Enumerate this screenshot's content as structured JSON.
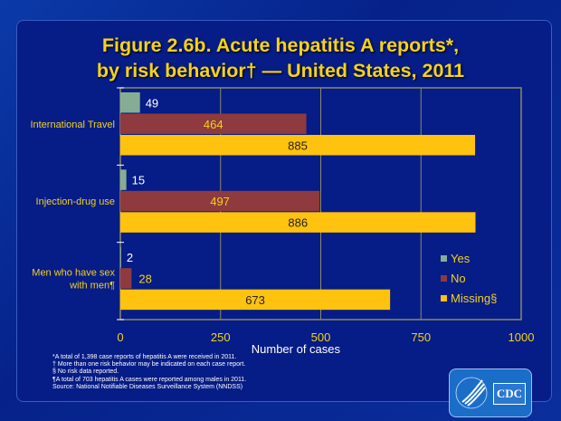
{
  "chart_data": {
    "type": "bar",
    "orientation": "horizontal",
    "title": "Figure 2.6b.  Acute hepatitis A reports*,",
    "title_line2": "by risk behavior† — United States, 2011",
    "categories": [
      "International Travel",
      "Injection-drug use",
      "Men who have sex with men¶"
    ],
    "series": [
      {
        "name": "Yes",
        "values": [
          49,
          15,
          2
        ],
        "color": "#86ad94"
      },
      {
        "name": "No",
        "values": [
          464,
          497,
          28
        ],
        "color": "#8e3a3e"
      },
      {
        "name": "Missing§",
        "values": [
          885,
          886,
          673
        ],
        "color": "#ffc20e"
      }
    ],
    "xlabel": "Number  of cases",
    "xlim": [
      0,
      1000
    ],
    "xticks": [
      "0",
      "250",
      "500",
      "750",
      "1000"
    ],
    "grid": "vertical",
    "legend": "right"
  },
  "footnotes": [
    "*A total of 1,398 case reports of hepatitis A were received in 2011.",
    "† More than one risk behavior may be indicated on each case report.",
    "§ No risk data reported.",
    "¶A total of 703 hepatitis A cases were reported among males in 2011.",
    "Source: National Notifiable Diseases Surveillance System (NNDSS)"
  ],
  "logo": {
    "text": "CDC"
  }
}
